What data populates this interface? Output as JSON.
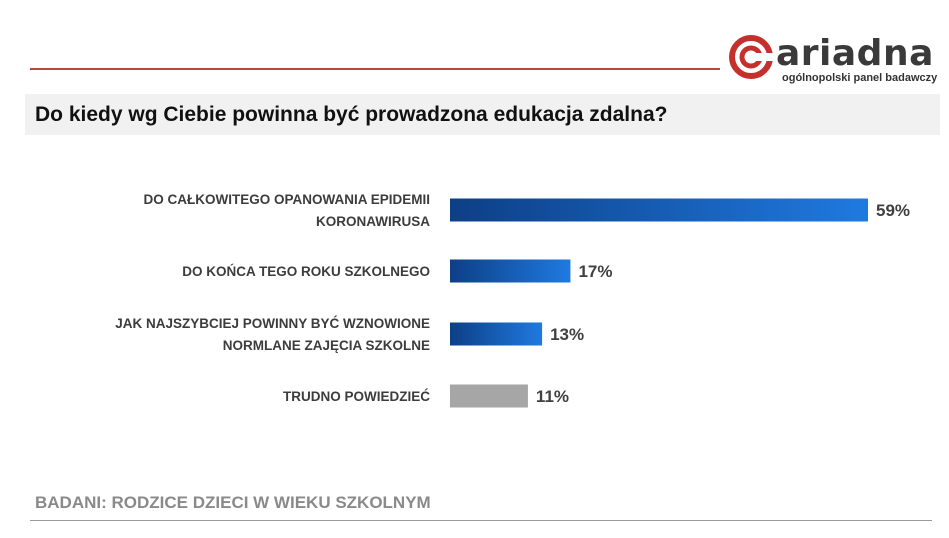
{
  "logo": {
    "word": "ariadna",
    "tagline": "ogólnopolski panel badawczy",
    "colors": {
      "mark": "#c4302b",
      "text": "#3a3a3a"
    }
  },
  "header": {
    "title": "Do kiedy wg Ciebie powinna być prowadzona edukacja zdalna?"
  },
  "chart_data": {
    "type": "bar",
    "orientation": "horizontal",
    "title": "Do kiedy wg Ciebie powinna być prowadzona edukacja zdalna?",
    "categories": [
      [
        "DO CAŁKOWITEGO OPANOWANIA EPIDEMII",
        "KORONAWIRUSA"
      ],
      [
        "DO KOŃCA TEGO ROKU SZKOLNEGO"
      ],
      [
        "JAK NAJSZYBCIEJ POWINNY BYĆ WZNOWIONE",
        "NORMLANE ZAJĘCIA SZKOLNE"
      ],
      [
        "TRUDNO POWIEDZIEĆ"
      ]
    ],
    "values": [
      59,
      17,
      13,
      11
    ],
    "value_labels": [
      "59%",
      "17%",
      "13%",
      "11%"
    ],
    "unit": "%",
    "colors": [
      "blue-gradient",
      "blue-gradient",
      "blue-gradient",
      "gray"
    ],
    "palette": {
      "blue_dark": "#0d3f86",
      "blue_light": "#1f7ae0",
      "gray": "#a6a6a6"
    },
    "grid": false,
    "legend": "none"
  },
  "footer": {
    "note": "BADANI: RODZICE DZIECI W WIEKU SZKOLNYM"
  }
}
